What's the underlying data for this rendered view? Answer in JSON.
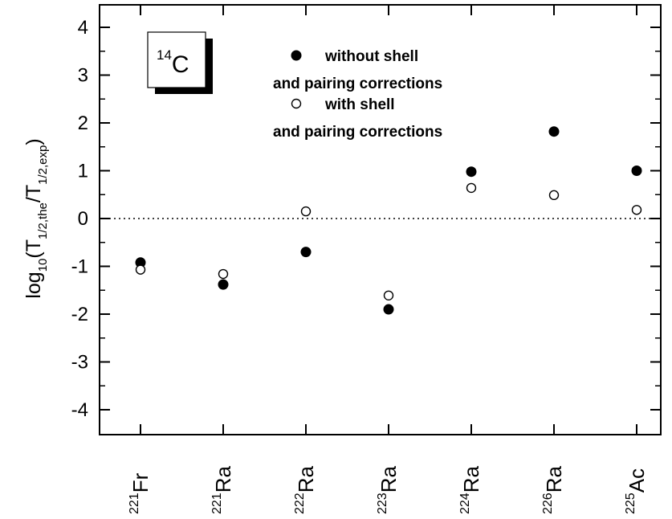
{
  "chart_data": {
    "type": "scatter",
    "title": "",
    "nucleus_label": {
      "mass": "14",
      "symbol": "C"
    },
    "ylabel": {
      "prefix": "log",
      "sub1": "10",
      "mid1": "(T",
      "sub2": "1/2,the",
      "mid2": "/T",
      "sub3": "1/2,exp",
      "suffix": ")"
    },
    "ylim": [
      -4.5,
      4.5
    ],
    "yticks": [
      -4,
      -3,
      -2,
      -1,
      0,
      1,
      2,
      3,
      4
    ],
    "ytick_labels": [
      "-4",
      "-3",
      "-2",
      "-1",
      "0",
      "1",
      "2",
      "3",
      "4"
    ],
    "reference_line": 0,
    "categories": [
      {
        "mass": "221",
        "symbol": "Fr"
      },
      {
        "mass": "221",
        "symbol": "Ra"
      },
      {
        "mass": "222",
        "symbol": "Ra"
      },
      {
        "mass": "223",
        "symbol": "Ra"
      },
      {
        "mass": "224",
        "symbol": "Ra"
      },
      {
        "mass": "226",
        "symbol": "Ra"
      },
      {
        "mass": "225",
        "symbol": "Ac"
      }
    ],
    "series": [
      {
        "legend_line1": "without shell",
        "legend_line2": "and pairing corrections",
        "marker": "filled-circle",
        "values": [
          -0.92,
          -1.38,
          -0.7,
          -1.9,
          0.98,
          1.82,
          1.0
        ]
      },
      {
        "legend_line1": "with shell",
        "legend_line2": "and pairing corrections",
        "marker": "open-circle",
        "values": [
          -1.07,
          -1.16,
          0.15,
          -1.61,
          0.64,
          0.49,
          0.18
        ]
      }
    ],
    "legend_position": "top-center",
    "grid": false
  }
}
